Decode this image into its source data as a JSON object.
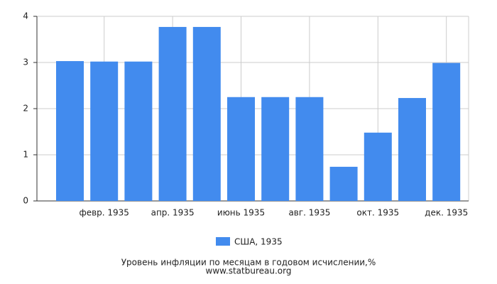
{
  "chart_data": {
    "type": "bar",
    "categories": [
      null,
      "февр. 1935",
      null,
      "апр. 1935",
      null,
      "июнь 1935",
      null,
      "авг. 1935",
      null,
      "окт. 1935",
      null,
      "дек. 1935"
    ],
    "series": [
      {
        "name": "США, 1935",
        "color": "#428bee",
        "values": [
          3.03,
          3.02,
          3.02,
          3.77,
          3.77,
          2.25,
          2.25,
          2.25,
          0.74,
          1.48,
          2.23,
          2.99
        ]
      }
    ],
    "ylim": [
      0,
      4
    ],
    "yticks": [
      0,
      1,
      2,
      3,
      4
    ],
    "grid": true,
    "footer": "Уровень инфляции по месяцам в годовом исчислении,%",
    "source": "www.statbureau.org"
  }
}
